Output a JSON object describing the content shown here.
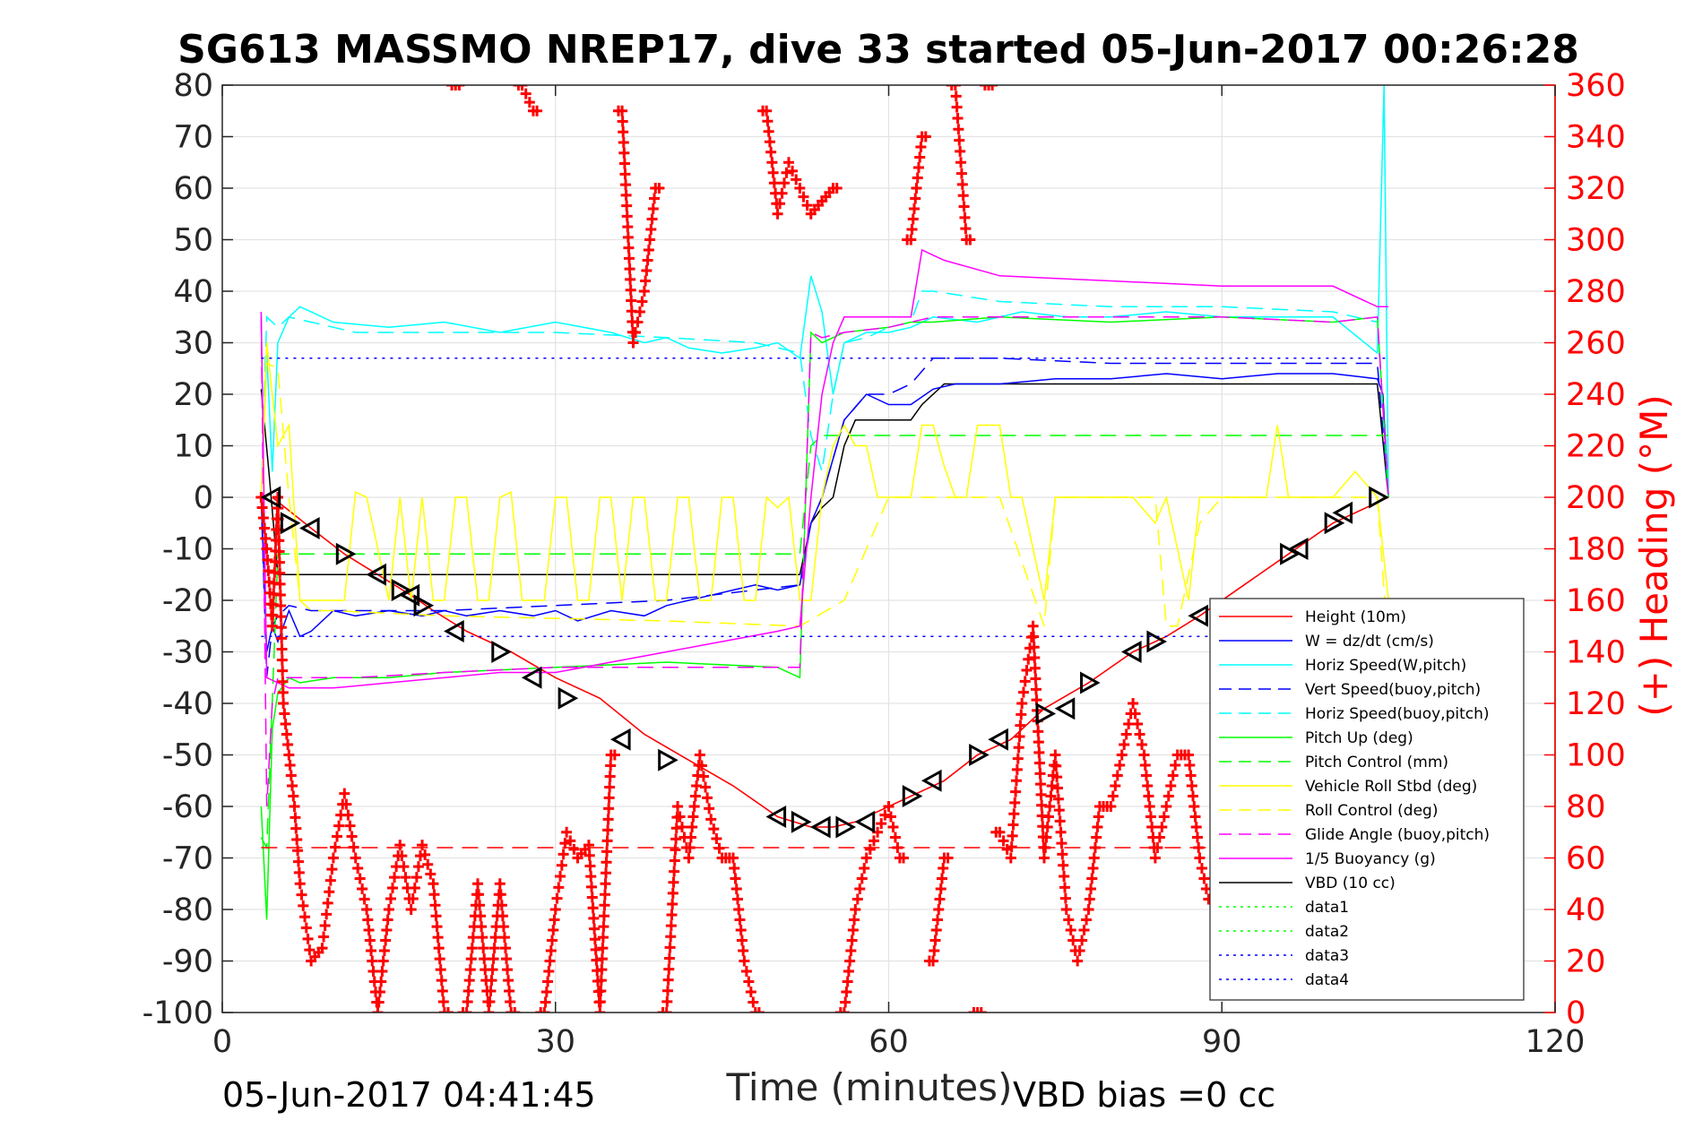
{
  "chart_data": {
    "type": "line",
    "title": "SG613 MASSMO NREP17, dive 33 started 05-Jun-2017 00:26:28",
    "xlabel": "Time (minutes)",
    "ylabel_right": "(+) Heading (°M)",
    "xlim": [
      0,
      120
    ],
    "ylim": [
      -100,
      80
    ],
    "ylim_right": [
      0,
      360
    ],
    "grid": true,
    "legend_position": "bottom-right",
    "x_ticks": [
      "0",
      "30",
      "60",
      "90",
      "120"
    ],
    "y_ticks": [
      "80",
      "70",
      "60",
      "50",
      "40",
      "30",
      "20",
      "10",
      "0",
      "-10",
      "-20",
      "-30",
      "-40",
      "-50",
      "-60",
      "-70",
      "-80",
      "-90",
      "-100"
    ],
    "y_ticks_right": [
      "360",
      "340",
      "320",
      "300",
      "280",
      "260",
      "240",
      "220",
      "200",
      "180",
      "160",
      "140",
      "120",
      "100",
      "80",
      "60",
      "40",
      "20",
      "0"
    ],
    "footer_time": "05-Jun-2017 04:41:45",
    "footer_bias": "VBD bias =0 cc",
    "legend": [
      {
        "label": "Height (10m)",
        "color": "#ff0000",
        "dash": "solid"
      },
      {
        "label": "W = dz/dt (cm/s)",
        "color": "#0000ff",
        "dash": "solid"
      },
      {
        "label": "Horiz Speed(W,pitch)",
        "color": "#00ffff",
        "dash": "solid"
      },
      {
        "label": "Vert Speed(buoy,pitch)",
        "color": "#0000ff",
        "dash": "dashed"
      },
      {
        "label": "Horiz Speed(buoy,pitch)",
        "color": "#00ffff",
        "dash": "dashed"
      },
      {
        "label": "Pitch Up (deg)",
        "color": "#00ff00",
        "dash": "solid"
      },
      {
        "label": "Pitch Control (mm)",
        "color": "#00ff00",
        "dash": "dashed"
      },
      {
        "label": "Vehicle Roll Stbd (deg)",
        "color": "#ffff00",
        "dash": "solid"
      },
      {
        "label": "Roll Control (deg)",
        "color": "#ffff00",
        "dash": "dashed"
      },
      {
        "label": "Glide Angle (buoy,pitch)",
        "color": "#ff00ff",
        "dash": "dashed"
      },
      {
        "label": "1/5 Buoyancy (g)",
        "color": "#ff00ff",
        "dash": "solid"
      },
      {
        "label": "VBD (10 cc)",
        "color": "#000000",
        "dash": "solid"
      },
      {
        "label": "data1",
        "color": "#00ff00",
        "dash": "dotted"
      },
      {
        "label": "data2",
        "color": "#00ff00",
        "dash": "dotted"
      },
      {
        "label": "data3",
        "color": "#0000ff",
        "dash": "dotted"
      },
      {
        "label": "data4",
        "color": "#0000ff",
        "dash": "dotted"
      }
    ],
    "series": [
      {
        "key": "height",
        "name": "Height (10m)",
        "color": "#ff0000",
        "dash": "solid",
        "x": [
          4.5,
          8,
          11,
          14,
          17,
          19,
          22,
          26,
          30,
          34,
          38,
          42,
          46,
          50,
          53,
          55,
          57,
          59,
          62,
          65,
          68,
          71,
          74,
          78,
          82,
          85,
          88,
          92,
          96,
          100,
          105
        ],
        "y": [
          0,
          -6,
          -11,
          -15,
          -19,
          -22,
          -26,
          -30,
          -35,
          -39,
          -46,
          -51,
          -56,
          -62,
          -64,
          -64,
          -63,
          -61,
          -58,
          -55,
          -50,
          -47,
          -41,
          -36,
          -30,
          -27,
          -23,
          -17,
          -11,
          -5,
          0
        ]
      },
      {
        "key": "vbd",
        "name": "VBD (10 cc)",
        "color": "#000000",
        "dash": "solid",
        "x": [
          3.5,
          4.2,
          5,
          20,
          40,
          52,
          53,
          54,
          55,
          56,
          57,
          60,
          62,
          63,
          65,
          66,
          80,
          100,
          104,
          105
        ],
        "y": [
          21,
          5,
          -15,
          -15,
          -15,
          -15,
          -5,
          -2,
          0,
          10,
          15,
          15,
          15,
          18,
          22,
          22,
          22,
          22,
          22,
          0
        ]
      },
      {
        "key": "w",
        "name": "W = dz/dt (cm/s)",
        "color": "#0000ff",
        "dash": "solid",
        "x": [
          3.5,
          4,
          4.5,
          5,
          6,
          7,
          8,
          10,
          12,
          15,
          18,
          20,
          22,
          25,
          28,
          30,
          32,
          35,
          38,
          40,
          42,
          44,
          46,
          48,
          50,
          52,
          53,
          54,
          56,
          58,
          60,
          62,
          64,
          66,
          70,
          75,
          80,
          85,
          90,
          95,
          100,
          104,
          104.5,
          105
        ],
        "y": [
          0,
          -30,
          -25,
          -28,
          -22,
          -27,
          -26,
          -22,
          -23,
          -22,
          -23,
          -22,
          -23,
          -22,
          -23,
          -22,
          -24,
          -22,
          -23,
          -21,
          -20,
          -19,
          -18,
          -17,
          -18,
          -17,
          -5,
          0,
          15,
          20,
          18,
          18,
          21,
          22,
          22,
          23,
          23,
          24,
          23,
          24,
          24,
          23,
          20,
          0
        ]
      },
      {
        "key": "vert_buoy",
        "name": "Vert Speed(buoy,pitch)",
        "color": "#0000ff",
        "dash": "dashed",
        "x": [
          3.5,
          4,
          4.5,
          5,
          6,
          8,
          12,
          20,
          30,
          40,
          48,
          52,
          53,
          54,
          56,
          58,
          60,
          62,
          64,
          70,
          80,
          90,
          100,
          104,
          105
        ],
        "y": [
          0,
          -35,
          -25,
          -23,
          -21,
          -22,
          -22,
          -22,
          -21,
          -20,
          -18,
          -17,
          -5,
          0,
          15,
          20,
          20,
          22,
          27,
          27,
          26,
          26,
          26,
          26,
          0
        ]
      },
      {
        "key": "horiz_w",
        "name": "Horiz Speed(W,pitch)",
        "color": "#00ffff",
        "dash": "solid",
        "x": [
          3.5,
          4,
          4.5,
          5,
          6,
          7,
          10,
          15,
          20,
          25,
          30,
          35,
          38,
          40,
          42,
          45,
          48,
          50,
          52,
          53,
          54,
          55,
          56,
          57,
          58,
          60,
          62,
          64,
          68,
          72,
          76,
          80,
          85,
          90,
          95,
          100,
          104,
          104.6,
          105
        ],
        "y": [
          0,
          28,
          5,
          30,
          35,
          37,
          34,
          33,
          34,
          32,
          34,
          32,
          30,
          31,
          29,
          28,
          29,
          30,
          27,
          43,
          36,
          20,
          30,
          31,
          32,
          32,
          33,
          35,
          34,
          36,
          35,
          35,
          36,
          35,
          35,
          35,
          28,
          80,
          0
        ]
      },
      {
        "key": "horiz_buoy",
        "name": "Horiz Speed(buoy,pitch)",
        "color": "#00ffff",
        "dash": "dashed",
        "x": [
          3.5,
          4,
          5,
          6,
          8,
          12,
          20,
          30,
          40,
          48,
          52,
          53,
          54,
          55,
          56,
          58,
          60,
          62,
          63,
          64,
          70,
          80,
          90,
          100,
          104,
          105
        ],
        "y": [
          0,
          35,
          33,
          35,
          34,
          32,
          32,
          32,
          31,
          30,
          28,
          12,
          5,
          20,
          30,
          31,
          33,
          34,
          40,
          40,
          38,
          37,
          37,
          36,
          34,
          0
        ]
      },
      {
        "key": "pitch",
        "name": "Pitch Up (deg)",
        "color": "#00ff00",
        "dash": "solid",
        "x": [
          3.5,
          4,
          4.5,
          5,
          6,
          7,
          10,
          15,
          20,
          30,
          40,
          50,
          52,
          53,
          54,
          55,
          56,
          60,
          62,
          64,
          70,
          80,
          90,
          100,
          104,
          105
        ],
        "y": [
          -60,
          -82,
          -45,
          -38,
          -35,
          -36,
          -35,
          -35,
          -34,
          -33,
          -32,
          -33,
          -35,
          32,
          30,
          31,
          32,
          33,
          34,
          34,
          35,
          34,
          35,
          34,
          35,
          0
        ]
      },
      {
        "key": "pitch_ctrl",
        "name": "Pitch Control (mm)",
        "color": "#00ff00",
        "dash": "dashed",
        "x": [
          3.5,
          4,
          5,
          20,
          40,
          52,
          53,
          54,
          56,
          60,
          64,
          80,
          100,
          105
        ],
        "y": [
          -66,
          -68,
          -11,
          -11,
          -11,
          -11,
          10,
          12,
          12,
          12,
          12,
          12,
          12,
          12
        ]
      },
      {
        "key": "roll",
        "name": "Vehicle Roll Stbd (deg)",
        "color": "#ffff00",
        "dash": "solid",
        "x": [
          3.5,
          4,
          5,
          6,
          7,
          8,
          9,
          10,
          11,
          12,
          13,
          15,
          16,
          17,
          18,
          19,
          20,
          21,
          22,
          23,
          24,
          25,
          26,
          27,
          28,
          29,
          30,
          31,
          32,
          33,
          34,
          35,
          36,
          37,
          38,
          39,
          40,
          41,
          42,
          43,
          44,
          45,
          46,
          47,
          48,
          49,
          50,
          51,
          52,
          53,
          54,
          55,
          56,
          57,
          58,
          59,
          60,
          62,
          63,
          64,
          65,
          66,
          67,
          68,
          70,
          71,
          72,
          74,
          75,
          78,
          80,
          82,
          84,
          85,
          87,
          88,
          90,
          94,
          95,
          96,
          98,
          100,
          102,
          104,
          105
        ],
        "y": [
          0,
          30,
          10,
          14,
          -20,
          -20,
          -20,
          -20,
          -20,
          1,
          0,
          -20,
          0,
          -20,
          0,
          -20,
          -20,
          0,
          0,
          -20,
          -20,
          0,
          1,
          -20,
          -20,
          -20,
          0,
          0,
          -20,
          -20,
          0,
          0,
          -20,
          0,
          0,
          -20,
          -20,
          0,
          0,
          -20,
          -20,
          0,
          0,
          -20,
          -20,
          0,
          -2,
          0,
          -20,
          -20,
          0,
          10,
          14,
          10,
          10,
          0,
          0,
          0,
          14,
          14,
          6,
          0,
          0,
          14,
          14,
          0,
          0,
          -20,
          0,
          0,
          0,
          0,
          -5,
          0,
          -20,
          0,
          0,
          0,
          14,
          0,
          0,
          0,
          5,
          0,
          -20
        ]
      },
      {
        "key": "roll_ctrl",
        "name": "Roll Control (deg)",
        "color": "#ffff00",
        "dash": "dashed",
        "x": [
          3.5,
          4,
          5,
          6,
          7,
          8,
          10,
          20,
          40,
          52,
          56,
          60,
          70,
          74,
          75,
          80,
          84,
          85,
          86,
          88,
          90,
          100,
          104,
          105
        ],
        "y": [
          0,
          26,
          25,
          0,
          -20,
          -22,
          -22,
          -23,
          -24,
          -25,
          -20,
          0,
          0,
          -25,
          0,
          0,
          0,
          -25,
          -25,
          -5,
          0,
          0,
          0,
          -30
        ]
      },
      {
        "key": "glide",
        "name": "Glide Angle (buoy,pitch)",
        "color": "#ff00ff",
        "dash": "dashed",
        "x": [
          3.5,
          4,
          4.5,
          5,
          6,
          8,
          12,
          20,
          30,
          40,
          50,
          52,
          53,
          54,
          56,
          60,
          64,
          70,
          80,
          90,
          100,
          104,
          105
        ],
        "y": [
          35,
          -60,
          -40,
          -35,
          -35,
          -35,
          -35,
          -34,
          -33,
          -33,
          -33,
          -33,
          32,
          31,
          32,
          33,
          35,
          35,
          35,
          35,
          34,
          35,
          0
        ]
      },
      {
        "key": "buoyancy",
        "name": "1/5 Buoyancy (g)",
        "color": "#ff00ff",
        "dash": "solid",
        "x": [
          3.5,
          4,
          5,
          6,
          8,
          10,
          15,
          20,
          25,
          30,
          35,
          40,
          45,
          50,
          52,
          53,
          54,
          55,
          56,
          60,
          62,
          63,
          64,
          65,
          70,
          80,
          90,
          100,
          104,
          105
        ],
        "y": [
          36,
          -35,
          -36,
          -37,
          -37,
          -37,
          -36,
          -35,
          -34,
          -34,
          -32,
          -30,
          -28,
          -26,
          -25,
          0,
          20,
          30,
          35,
          35,
          35,
          48,
          47,
          46,
          43,
          42,
          41,
          41,
          37,
          37
        ]
      },
      {
        "key": "data3",
        "name": "data3",
        "color": "#0000ff",
        "dash": "dotted",
        "x": [
          3.5,
          105
        ],
        "y": [
          27,
          27
        ]
      },
      {
        "key": "data4",
        "name": "data4",
        "color": "#0000ff",
        "dash": "dotted",
        "x": [
          3.5,
          105
        ],
        "y": [
          -27,
          -27
        ]
      },
      {
        "key": "red_dash",
        "name": "",
        "color": "#ff0000",
        "dash": "dashed",
        "x": [
          3.5,
          105
        ],
        "y": [
          -68,
          -68
        ]
      }
    ],
    "heading": {
      "name": "(+) Heading (°M)",
      "color": "#ff0000",
      "marker": "+",
      "x": [
        3.5,
        4,
        4.5,
        5,
        5.5,
        6,
        6.5,
        7,
        8,
        9,
        10,
        11,
        12,
        13,
        14,
        15,
        16,
        17,
        18,
        19,
        20,
        21,
        22,
        23,
        24,
        25,
        26,
        27,
        28,
        29,
        30,
        31,
        32,
        33,
        34,
        35,
        36,
        37,
        38,
        39,
        40,
        41,
        42,
        43,
        44,
        45,
        46,
        47,
        48,
        49,
        50,
        51,
        52,
        53,
        54,
        55,
        56,
        57,
        58,
        59,
        60,
        61,
        62,
        63,
        64,
        65,
        66,
        67,
        68,
        69,
        70,
        71,
        72,
        73,
        74,
        75,
        76,
        77,
        78,
        79,
        80,
        81,
        82,
        83,
        84,
        85,
        86,
        87,
        88,
        89
      ],
      "y": [
        200,
        180,
        150,
        200,
        120,
        100,
        80,
        50,
        20,
        25,
        60,
        85,
        60,
        40,
        0,
        40,
        65,
        40,
        65,
        50,
        0,
        360,
        0,
        50,
        0,
        50,
        0,
        360,
        350,
        0,
        40,
        70,
        60,
        65,
        0,
        100,
        350,
        260,
        280,
        320,
        0,
        80,
        60,
        100,
        75,
        60,
        60,
        20,
        0,
        350,
        310,
        330,
        320,
        310,
        315,
        320,
        0,
        40,
        60,
        70,
        80,
        60,
        300,
        340,
        20,
        60,
        360,
        300,
        0,
        360,
        70,
        60,
        120,
        150,
        60,
        100,
        40,
        20,
        40,
        80,
        80,
        100,
        120,
        100,
        60,
        80,
        100,
        100,
        60,
        40
      ]
    },
    "triangles": {
      "x": [
        4.5,
        6,
        8,
        11,
        14,
        16,
        17,
        18,
        21,
        25,
        28,
        31,
        36,
        40,
        50,
        52,
        54,
        56,
        58,
        62,
        64,
        68,
        70,
        74,
        76,
        78,
        82,
        84,
        88,
        96,
        97,
        100,
        101,
        104
      ],
      "y": [
        0,
        -5,
        -6,
        -11,
        -15,
        -18,
        -19,
        -21,
        -26,
        -30,
        -35,
        -39,
        -47,
        -51,
        -62,
        -63,
        -64,
        -64,
        -63,
        -58,
        -55,
        -50,
        -47,
        -42,
        -41,
        -36,
        -30,
        -28,
        -23,
        -11,
        -10,
        -5,
        -3,
        0
      ]
    }
  }
}
